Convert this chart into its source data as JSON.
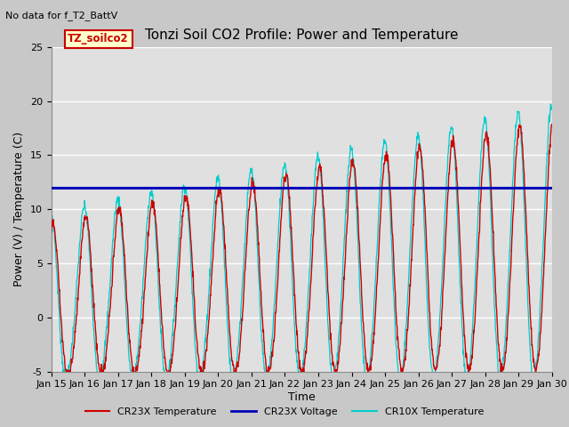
{
  "title": "Tonzi Soil CO2 Profile: Power and Temperature",
  "subtitle": "No data for f_T2_BattV",
  "xlabel": "Time",
  "ylabel": "Power (V) / Temperature (C)",
  "ylim": [
    -5,
    25
  ],
  "xlim": [
    0,
    15
  ],
  "x_tick_labels": [
    "Jan 15",
    "Jan 16",
    "Jan 17",
    "Jan 18",
    "Jan 19",
    "Jan 20",
    "Jan 21",
    "Jan 22",
    "Jan 23",
    "Jan 24",
    "Jan 25",
    "Jan 26",
    "Jan 27",
    "Jan 28",
    "Jan 29",
    "Jan 30"
  ],
  "voltage_value": 12.0,
  "voltage_color": "#0000bb",
  "cr23x_temp_color": "#cc0000",
  "cr10x_temp_color": "#00cccc",
  "fig_bg_color": "#c8c8c8",
  "plot_bg_color": "#e0e0e0",
  "grid_color": "#ffffff",
  "annotation_text": "TZ_soilco2",
  "annotation_bg": "#ffffcc",
  "annotation_border": "#cc0000",
  "legend_entries": [
    "CR23X Temperature",
    "CR23X Voltage",
    "CR10X Temperature"
  ],
  "title_fontsize": 11,
  "axis_fontsize": 9,
  "tick_fontsize": 8
}
